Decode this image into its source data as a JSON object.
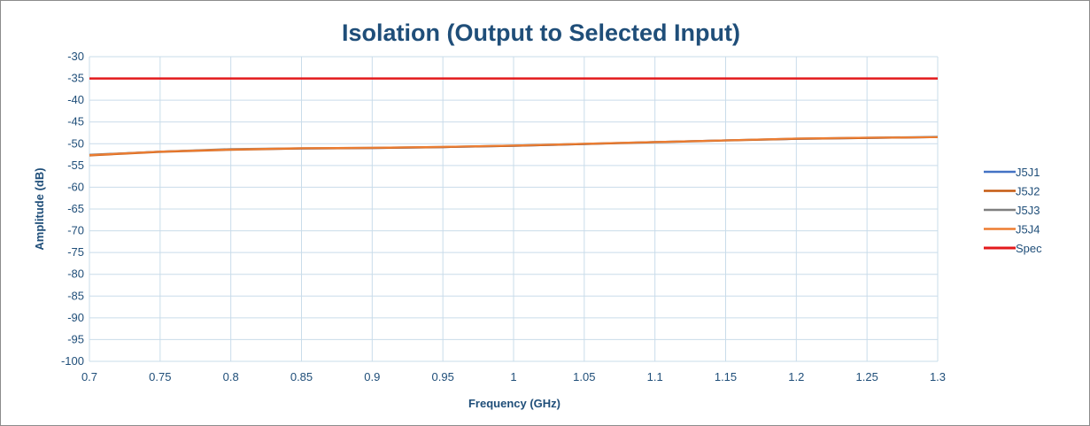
{
  "chart_data": {
    "type": "line",
    "title": "Isolation (Output to Selected Input)",
    "xlabel": "Frequency (GHz)",
    "ylabel": "Amplitude (dB)",
    "xlim": [
      0.7,
      1.3
    ],
    "ylim": [
      -100,
      -30
    ],
    "x_ticks": [
      "0.7",
      "0.75",
      "0.8",
      "0.85",
      "0.9",
      "0.95",
      "1",
      "1.05",
      "1.1",
      "1.15",
      "1.2",
      "1.25",
      "1.3"
    ],
    "y_ticks": [
      "-30",
      "-35",
      "-40",
      "-45",
      "-50",
      "-55",
      "-60",
      "-65",
      "-70",
      "-75",
      "-80",
      "-85",
      "-90",
      "-95",
      "-100"
    ],
    "grid": true,
    "legend_position": "right",
    "x": [
      0.7,
      0.75,
      0.8,
      0.85,
      0.9,
      0.95,
      1.0,
      1.05,
      1.1,
      1.15,
      1.2,
      1.25,
      1.3
    ],
    "series": [
      {
        "name": "J5J1",
        "color": "#4472c4",
        "values": [
          -52.6,
          -51.8,
          -51.3,
          -51.1,
          -51.0,
          -50.8,
          -50.5,
          -50.1,
          -49.6,
          -49.2,
          -48.9,
          -48.7,
          -48.5
        ]
      },
      {
        "name": "J5J2",
        "color": "#c55a11",
        "values": [
          -52.7,
          -51.9,
          -51.4,
          -51.1,
          -51.0,
          -50.8,
          -50.5,
          -50.1,
          -49.7,
          -49.3,
          -48.9,
          -48.7,
          -48.5
        ]
      },
      {
        "name": "J5J3",
        "color": "#7f7f7f",
        "values": [
          -52.5,
          -51.8,
          -51.2,
          -51.0,
          -50.9,
          -50.7,
          -50.4,
          -50.0,
          -49.6,
          -49.2,
          -48.8,
          -48.6,
          -48.4
        ]
      },
      {
        "name": "J5J4",
        "color": "#ed7d31",
        "values": [
          -52.6,
          -51.8,
          -51.3,
          -51.0,
          -50.9,
          -50.7,
          -50.4,
          -50.0,
          -49.6,
          -49.2,
          -48.8,
          -48.6,
          -48.5
        ]
      },
      {
        "name": "Spec",
        "color": "#e31a1c",
        "values": [
          -35,
          -35,
          -35,
          -35,
          -35,
          -35,
          -35,
          -35,
          -35,
          -35,
          -35,
          -35,
          -35
        ]
      }
    ]
  }
}
